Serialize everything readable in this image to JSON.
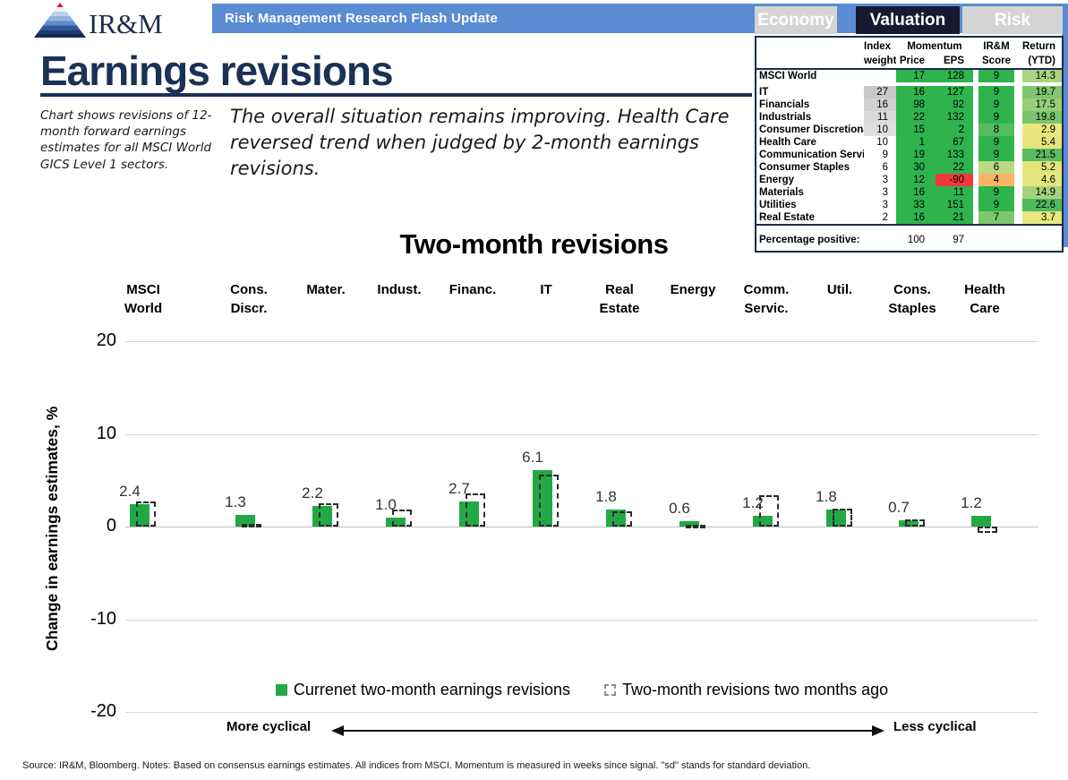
{
  "header": {
    "logo_text": "IR&M",
    "banner_title": "Risk Management Research Flash Update"
  },
  "tabs": [
    {
      "label": "Economy",
      "active": false
    },
    {
      "label": "Valuation",
      "active": true
    },
    {
      "label": "Risk",
      "active": false
    }
  ],
  "page": {
    "title": "Earnings revisions",
    "side_note": "Chart shows revisions of 12-month forward earnings estimates for all MSCI World GICS Level 1 sectors.",
    "commentary": "The overall situation remains improving. Health Care reversed trend when judged by 2-month earnings revisions."
  },
  "valuation_table": {
    "headers": {
      "index": "Index",
      "weight": "weight",
      "momentum": "Momentum",
      "price": "Price",
      "eps": "EPS",
      "irm": "IR&M",
      "score": "Score",
      "return": "Return",
      "ytd": "(YTD)"
    },
    "green": "#2eb34d",
    "rows": [
      {
        "name": "MSCI World",
        "weight": "",
        "weight_bg": "#ffffff",
        "price": "17",
        "eps": "128",
        "eps_bg": "#2eb34d",
        "score": "9",
        "score_bg": "#2eb34d",
        "ret": "14.3",
        "ret_bg": "#aad47f",
        "gap_after": true
      },
      {
        "name": "IT",
        "weight": "27",
        "weight_bg": "#c8c8c8",
        "price": "16",
        "eps": "127",
        "eps_bg": "#2eb34d",
        "score": "9",
        "score_bg": "#2eb34d",
        "ret": "19.7",
        "ret_bg": "#7ec56f"
      },
      {
        "name": "Financials",
        "weight": "16",
        "weight_bg": "#d2d2d2",
        "price": "98",
        "eps": "92",
        "eps_bg": "#2eb34d",
        "score": "9",
        "score_bg": "#2eb34d",
        "ret": "17.5",
        "ret_bg": "#98ce79"
      },
      {
        "name": "Industrials",
        "weight": "11",
        "weight_bg": "#dcdcdc",
        "price": "22",
        "eps": "132",
        "eps_bg": "#2eb34d",
        "score": "9",
        "score_bg": "#2eb34d",
        "ret": "19.8",
        "ret_bg": "#7dc46e"
      },
      {
        "name": "Consumer Discretionary",
        "weight": "10",
        "weight_bg": "#e0e0e0",
        "price": "15",
        "eps": "2",
        "eps_bg": "#2eb34d",
        "score": "8",
        "score_bg": "#56bc60",
        "ret": "2.9",
        "ret_bg": "#e9e87e"
      },
      {
        "name": "Health Care",
        "weight": "10",
        "weight_bg": "#ffffff",
        "price": "1",
        "eps": "67",
        "eps_bg": "#2eb34d",
        "score": "9",
        "score_bg": "#2eb34d",
        "ret": "5.4",
        "ret_bg": "#e4e67c"
      },
      {
        "name": "Communication Services",
        "weight": "9",
        "weight_bg": "#ffffff",
        "price": "19",
        "eps": "133",
        "eps_bg": "#2eb34d",
        "score": "9",
        "score_bg": "#2eb34d",
        "ret": "21.5",
        "ret_bg": "#5abc62"
      },
      {
        "name": "Consumer Staples",
        "weight": "6",
        "weight_bg": "#ffffff",
        "price": "30",
        "eps": "22",
        "eps_bg": "#2eb34d",
        "score": "6",
        "score_bg": "#b9da83",
        "ret": "5.2",
        "ret_bg": "#e4e67c"
      },
      {
        "name": "Energy",
        "weight": "3",
        "weight_bg": "#ffffff",
        "price": "12",
        "eps": "-90",
        "eps_bg": "#ee3a3a",
        "score": "4",
        "score_bg": "#fbb466",
        "ret": "4.6",
        "ret_bg": "#e6e77d"
      },
      {
        "name": "Materials",
        "weight": "3",
        "weight_bg": "#ffffff",
        "price": "16",
        "eps": "11",
        "eps_bg": "#2eb34d",
        "score": "9",
        "score_bg": "#2eb34d",
        "ret": "14.9",
        "ret_bg": "#a5d27d"
      },
      {
        "name": "Utilities",
        "weight": "3",
        "weight_bg": "#ffffff",
        "price": "33",
        "eps": "151",
        "eps_bg": "#2eb34d",
        "score": "9",
        "score_bg": "#2eb34d",
        "ret": "22.6",
        "ret_bg": "#4fb95e"
      },
      {
        "name": "Real Estate",
        "weight": "2",
        "weight_bg": "#ffffff",
        "price": "16",
        "eps": "21",
        "eps_bg": "#2eb34d",
        "score": "7",
        "score_bg": "#7fc76c",
        "ret": "3.7",
        "ret_bg": "#e8e87e"
      }
    ],
    "footer": {
      "label": "Percentage positive:",
      "price": "100",
      "eps": "97"
    }
  },
  "chart_data": {
    "type": "bar",
    "title": "Two-month revisions",
    "ylabel": "Change in earnings estimates, %",
    "ylim": [
      -20,
      20
    ],
    "yticks": [
      20,
      10,
      0,
      -10,
      -20
    ],
    "grid": true,
    "categories": [
      [
        "MSCI",
        "World"
      ],
      [
        "Cons.",
        "Discr."
      ],
      [
        "Mater."
      ],
      [
        "Indust."
      ],
      [
        "Financ."
      ],
      [
        "IT"
      ],
      [
        "Real",
        "Estate"
      ],
      [
        "Energy"
      ],
      [
        "Comm.",
        "Servic."
      ],
      [
        "Util."
      ],
      [
        "Cons.",
        "Staples"
      ],
      [
        "Health",
        "Care"
      ]
    ],
    "series": [
      {
        "name": "Currenet two-month earnings revisions",
        "style": "solid",
        "color": "#22a946",
        "values": [
          2.4,
          1.3,
          2.2,
          1.0,
          2.7,
          6.1,
          1.8,
          0.6,
          1.2,
          1.8,
          0.7,
          1.2
        ]
      },
      {
        "name": "Two-month revisions two months ago",
        "style": "dashed",
        "color": "#2b2b2b",
        "values": [
          2.7,
          0.3,
          2.5,
          1.8,
          3.6,
          5.6,
          1.6,
          0.2,
          3.4,
          1.9,
          0.8,
          -0.7
        ]
      }
    ],
    "data_labels": [
      "2.4",
      "1.3",
      "2.2",
      "1.0",
      "2.7",
      "6.1",
      "1.8",
      "0.6",
      "1.2",
      "1.8",
      "0.7",
      "1.2"
    ],
    "annotations": {
      "left_arrow_label": "More cyclical",
      "right_arrow_label": "Less cyclical"
    },
    "legend_position": "bottom"
  },
  "footer_note": "Source: IR&M, Bloomberg. Notes: Based on consensus earnings estimates. All indices from MSCI. Momentum is measured in weeks since signal. \"sd\" stands for standard deviation."
}
